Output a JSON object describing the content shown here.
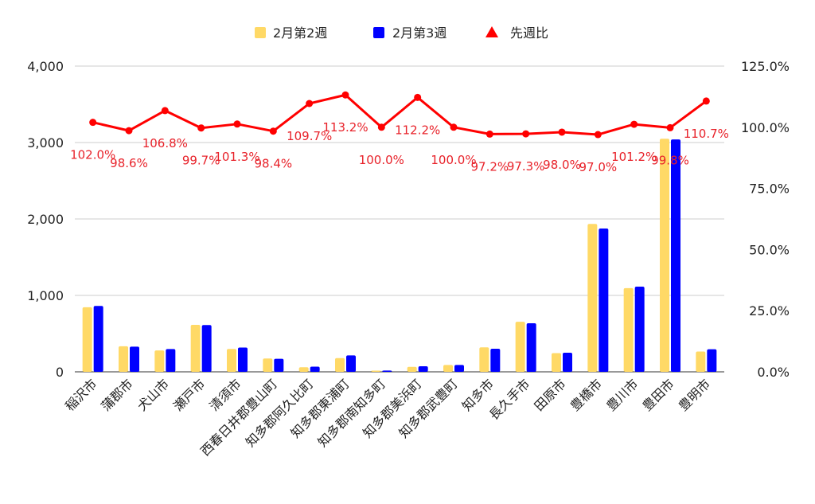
{
  "chart_data": {
    "type": "bar",
    "categories": [
      "稲沢市",
      "蒲郡市",
      "犬山市",
      "瀬戸市",
      "清須市",
      "西春日井郡豊山町",
      "知多郡阿久比町",
      "知多郡東浦町",
      "知多郡南知多町",
      "知多郡美浜町",
      "知多郡武豊町",
      "知多市",
      "長久手市",
      "田原市",
      "豊橋市",
      "豊川市",
      "豊田市",
      "豊明市"
    ],
    "series": [
      {
        "name": "2月第2週",
        "type": "bar",
        "axis": "left",
        "color": "#ffd966",
        "values": [
          845,
          335,
          280,
          615,
          300,
          175,
          60,
          180,
          15,
          65,
          90,
          320,
          655,
          245,
          1935,
          1095,
          3050,
          265
        ]
      },
      {
        "name": "2月第3週",
        "type": "bar",
        "axis": "left",
        "color": "#0000ff",
        "values": [
          862,
          330,
          298,
          612,
          318,
          170,
          68,
          215,
          17,
          73,
          90,
          302,
          635,
          250,
          1875,
          1115,
          3040,
          295
        ]
      },
      {
        "name": "先週比",
        "type": "line",
        "axis": "right",
        "color": "#ff0000",
        "marker": "triangle",
        "values": [
          102.0,
          98.6,
          106.8,
          99.7,
          101.3,
          98.4,
          109.7,
          113.2,
          100.0,
          112.2,
          100.0,
          97.2,
          97.3,
          98.0,
          97.0,
          101.2,
          99.8,
          110.7
        ],
        "labels": [
          "102.0%",
          "98.6%",
          "106.8%",
          "99.7%",
          "101.3%",
          "98.4%",
          "109.7%",
          "113.2%",
          "100.0%",
          "112.2%",
          "100.0%",
          "97.2%",
          "97.3%",
          "98.0%",
          "97.0%",
          "101.2%",
          "99.8%",
          "110.7%"
        ]
      }
    ],
    "y_left": {
      "min": 0,
      "max": 4000,
      "ticks": [
        0,
        1000,
        2000,
        3000,
        4000
      ],
      "tick_labels": [
        "0",
        "1,000",
        "2,000",
        "3,000",
        "4,000"
      ]
    },
    "y_right": {
      "min": 0,
      "max": 125,
      "ticks": [
        0,
        25,
        50,
        75,
        100,
        125
      ],
      "tick_labels": [
        "0.0%",
        "25.0%",
        "50.0%",
        "75.0%",
        "100.0%",
        "125.0%"
      ]
    },
    "grid": true,
    "legend_position": "top-center"
  }
}
